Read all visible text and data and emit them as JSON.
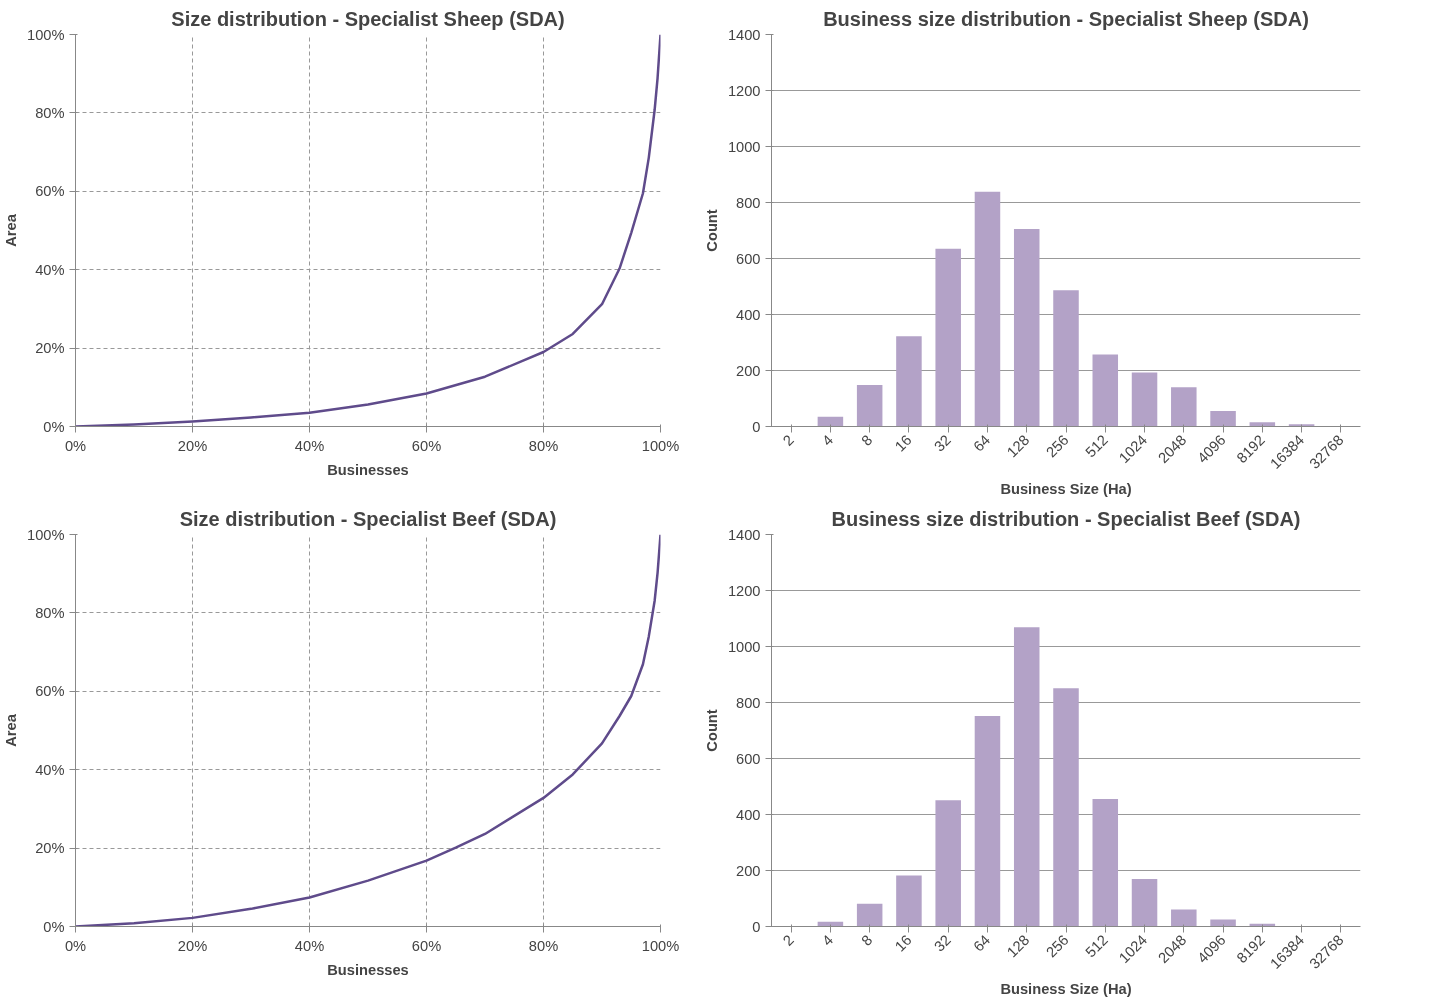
{
  "chart_data": [
    {
      "type": "line",
      "title": "Size distribution - Specialist Sheep (SDA)",
      "xlabel": "Businesses",
      "ylabel": "Area",
      "grid": true,
      "xlim": [
        0,
        100
      ],
      "ylim": [
        0,
        100
      ],
      "xticks": [
        {
          "value": 0,
          "label": "0%"
        },
        {
          "value": 20,
          "label": "20%"
        },
        {
          "value": 40,
          "label": "40%"
        },
        {
          "value": 60,
          "label": "60%"
        },
        {
          "value": 80,
          "label": "80%"
        },
        {
          "value": 100,
          "label": "100%"
        }
      ],
      "yticks": [
        {
          "value": 0,
          "label": "0%"
        },
        {
          "value": 20,
          "label": "20%"
        },
        {
          "value": 40,
          "label": "40%"
        },
        {
          "value": 60,
          "label": "60%"
        },
        {
          "value": 80,
          "label": "80%"
        },
        {
          "value": 100,
          "label": "100%"
        }
      ],
      "x": [
        0,
        10,
        20,
        30,
        40,
        50,
        60,
        70,
        80,
        85,
        90,
        93,
        95,
        97,
        98,
        99,
        99.5,
        100
      ],
      "series": [
        {
          "color": "#5f4b8b",
          "values": [
            0,
            0.5,
            1.3,
            2.3,
            3.5,
            5.6,
            8.4,
            12.7,
            19.0,
            23.6,
            31.2,
            40.3,
            49.4,
            59.5,
            68.6,
            80.8,
            88.9,
            100
          ]
        }
      ]
    },
    {
      "type": "bar",
      "title": "Business size distribution - Specialist Sheep (SDA)",
      "xlabel": "Business Size (Ha)",
      "ylabel": "Count",
      "grid": "y",
      "ylim": [
        0,
        1400
      ],
      "yticks": [
        0,
        200,
        400,
        600,
        800,
        1000,
        1200,
        1400
      ],
      "categories": [
        "2",
        "4",
        "8",
        "16",
        "32",
        "64",
        "128",
        "256",
        "512",
        "1024",
        "2048",
        "4096",
        "8192",
        "16384",
        "32768"
      ],
      "series": [
        {
          "color": "#b3a2c7",
          "values": [
            0,
            35,
            148,
            322,
            635,
            838,
            705,
            487,
            257,
            193,
            140,
            55,
            15,
            8,
            0
          ]
        }
      ]
    },
    {
      "type": "line",
      "title": "Size distribution - Specialist Beef (SDA)",
      "xlabel": "Businesses",
      "ylabel": "Area",
      "grid": true,
      "xlim": [
        0,
        100
      ],
      "ylim": [
        0,
        100
      ],
      "xticks": [
        {
          "value": 0,
          "label": "0%"
        },
        {
          "value": 20,
          "label": "20%"
        },
        {
          "value": 40,
          "label": "40%"
        },
        {
          "value": 60,
          "label": "60%"
        },
        {
          "value": 80,
          "label": "80%"
        },
        {
          "value": 100,
          "label": "100%"
        }
      ],
      "yticks": [
        {
          "value": 0,
          "label": "0%"
        },
        {
          "value": 20,
          "label": "20%"
        },
        {
          "value": 40,
          "label": "40%"
        },
        {
          "value": 60,
          "label": "60%"
        },
        {
          "value": 80,
          "label": "80%"
        },
        {
          "value": 100,
          "label": "100%"
        }
      ],
      "x": [
        0,
        10,
        20,
        30,
        40,
        50,
        60,
        65,
        70,
        80,
        85,
        90,
        93,
        95,
        97,
        98,
        99,
        99.5,
        100
      ],
      "series": [
        {
          "color": "#5f4b8b",
          "values": [
            0,
            0.8,
            2.2,
            4.5,
            7.4,
            11.7,
            16.8,
            20.1,
            23.6,
            32.8,
            38.8,
            46.7,
            53.7,
            58.8,
            66.9,
            74.0,
            83.1,
            90.2,
            100
          ]
        }
      ]
    },
    {
      "type": "bar",
      "title": "Business size distribution - Specialist Beef (SDA)",
      "xlabel": "Business Size (Ha)",
      "ylabel": "Count",
      "grid": "y",
      "ylim": [
        0,
        1400
      ],
      "yticks": [
        0,
        200,
        400,
        600,
        800,
        1000,
        1200,
        1400
      ],
      "categories": [
        "2",
        "4",
        "8",
        "16",
        "32",
        "64",
        "128",
        "256",
        "512",
        "1024",
        "2048",
        "4096",
        "8192",
        "16384",
        "32768"
      ],
      "series": [
        {
          "color": "#b3a2c7",
          "values": [
            0,
            17,
            81,
            182,
            451,
            752,
            1069,
            851,
            455,
            170,
            61,
            25,
            10,
            0,
            0
          ]
        }
      ]
    }
  ]
}
